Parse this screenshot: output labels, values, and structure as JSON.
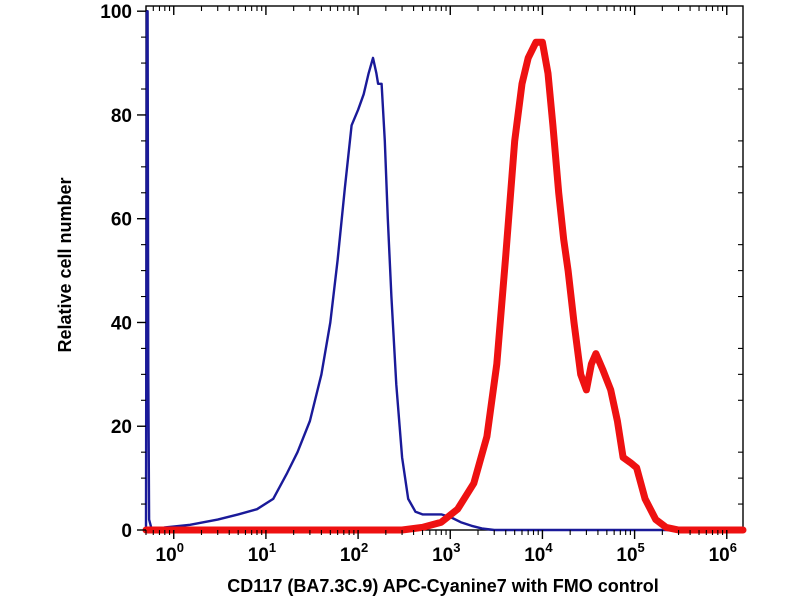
{
  "chart_data": {
    "type": "line",
    "title": "",
    "xlabel": "CD117 (BA7.3C.9) APC-Cyanine7 with FMO control",
    "ylabel": "Relative cell number",
    "x_scale": "log10",
    "xlim": [
      0.5,
      1500000
    ],
    "ylim": [
      0,
      101
    ],
    "x_ticks": [
      {
        "value": 1,
        "base": "10",
        "exp": "0"
      },
      {
        "value": 10,
        "base": "10",
        "exp": "1"
      },
      {
        "value": 100,
        "base": "10",
        "exp": "2"
      },
      {
        "value": 1000,
        "base": "10",
        "exp": "3"
      },
      {
        "value": 10000,
        "base": "10",
        "exp": "4"
      },
      {
        "value": 100000,
        "base": "10",
        "exp": "5"
      },
      {
        "value": 1000000,
        "base": "10",
        "exp": "6"
      }
    ],
    "y_ticks": [
      {
        "value": 0,
        "label": "0"
      },
      {
        "value": 20,
        "label": "20"
      },
      {
        "value": 40,
        "label": "40"
      },
      {
        "value": 60,
        "label": "60"
      },
      {
        "value": 80,
        "label": "80"
      },
      {
        "value": 100,
        "label": "100"
      }
    ],
    "grid": false,
    "legend": "none",
    "series": [
      {
        "color": "#1a1a99",
        "x": [
          0.5,
          0.51,
          0.52,
          0.53,
          0.54,
          0.57,
          0.62,
          0.8,
          1.5,
          3,
          5,
          8,
          12,
          17,
          22,
          30,
          40,
          50,
          60,
          72,
          85,
          100,
          115,
          130,
          145,
          158,
          165,
          180,
          195,
          210,
          230,
          260,
          300,
          350,
          420,
          500,
          650,
          800,
          1000,
          1300,
          1700,
          2200,
          3000,
          5000,
          10000,
          100000,
          1500000
        ],
        "y": [
          0,
          100,
          100,
          30,
          2,
          0.5,
          0,
          0.5,
          1,
          2,
          3,
          4,
          6,
          11,
          15,
          21,
          30,
          40,
          52,
          66,
          78,
          81,
          84,
          88,
          91,
          88,
          86,
          86,
          75,
          60,
          45,
          28,
          14,
          6,
          3.5,
          3,
          3,
          3,
          2.5,
          1.5,
          0.8,
          0.3,
          0,
          0,
          0,
          0,
          0
        ]
      },
      {
        "color": "#ee1111",
        "x": [
          0.5,
          100,
          300,
          500,
          800,
          1200,
          1800,
          2500,
          3200,
          4000,
          5000,
          6000,
          7000,
          8500,
          10000,
          11500,
          13000,
          15000,
          17000,
          19000,
          22000,
          26000,
          30000,
          34000,
          38000,
          45000,
          55000,
          65000,
          75000,
          90000,
          105000,
          130000,
          170000,
          220000,
          300000,
          500000,
          1500000
        ],
        "y": [
          0,
          0,
          0,
          0.5,
          1.5,
          4,
          9,
          18,
          32,
          53,
          75,
          86,
          91,
          94,
          94,
          88,
          78,
          65,
          56,
          50,
          40,
          30,
          27,
          32,
          34,
          31,
          27,
          21,
          14,
          13,
          12,
          6,
          2,
          0.5,
          0,
          0,
          0
        ]
      }
    ]
  }
}
